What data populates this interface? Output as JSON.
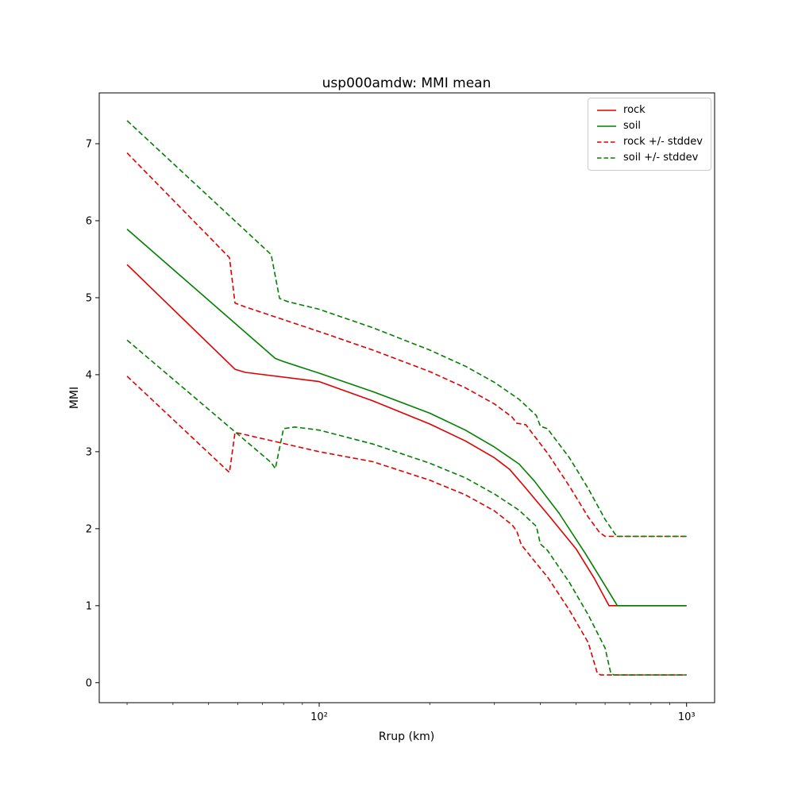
{
  "chart_data": {
    "type": "line",
    "title": "usp000amdw: MMI mean",
    "xlabel": "Rrup (km)",
    "ylabel": "MMI",
    "x_scale": "log",
    "y_scale": "linear",
    "xlim": [
      25.2,
      1192
    ],
    "ylim": [
      -0.26,
      7.66
    ],
    "grid": false,
    "legend_position": "upper right",
    "x_major_ticks": [
      {
        "value": 100,
        "label": "10²"
      },
      {
        "value": 1000,
        "label": "10³"
      }
    ],
    "x_minor_ticks": [
      30,
      40,
      50,
      60,
      70,
      80,
      90,
      200,
      300,
      400,
      500,
      600,
      700,
      800,
      900
    ],
    "y_ticks": [
      0,
      1,
      2,
      3,
      4,
      5,
      6,
      7
    ],
    "series": [
      {
        "id": "rock",
        "label": "rock",
        "color": "#e00000",
        "style": "solid",
        "points": [
          [
            30,
            5.43
          ],
          [
            59,
            4.07
          ],
          [
            63,
            4.03
          ],
          [
            100,
            3.91
          ],
          [
            140,
            3.66
          ],
          [
            200,
            3.36
          ],
          [
            250,
            3.14
          ],
          [
            300,
            2.92
          ],
          [
            330,
            2.77
          ],
          [
            360,
            2.56
          ],
          [
            420,
            2.18
          ],
          [
            500,
            1.74
          ],
          [
            560,
            1.36
          ],
          [
            615,
            1.0
          ],
          [
            1000,
            1.0
          ]
        ]
      },
      {
        "id": "soil",
        "label": "soil",
        "color": "#008000",
        "style": "solid",
        "points": [
          [
            30,
            5.89
          ],
          [
            76,
            4.21
          ],
          [
            80,
            4.17
          ],
          [
            100,
            4.02
          ],
          [
            140,
            3.78
          ],
          [
            200,
            3.5
          ],
          [
            250,
            3.28
          ],
          [
            300,
            3.06
          ],
          [
            350,
            2.84
          ],
          [
            385,
            2.62
          ],
          [
            450,
            2.2
          ],
          [
            530,
            1.68
          ],
          [
            600,
            1.26
          ],
          [
            648,
            1.0
          ],
          [
            1000,
            1.0
          ]
        ]
      },
      {
        "id": "rock-stddev",
        "label": "rock +/- stddev",
        "color": "#e00000",
        "style": "dashed",
        "points_upper": [
          [
            30,
            6.88
          ],
          [
            57,
            5.52
          ],
          [
            59,
            4.93
          ],
          [
            63,
            4.88
          ],
          [
            100,
            4.56
          ],
          [
            140,
            4.32
          ],
          [
            200,
            4.04
          ],
          [
            250,
            3.83
          ],
          [
            300,
            3.62
          ],
          [
            335,
            3.45
          ],
          [
            345,
            3.37
          ],
          [
            365,
            3.35
          ],
          [
            420,
            2.97
          ],
          [
            480,
            2.55
          ],
          [
            540,
            2.15
          ],
          [
            580,
            1.95
          ],
          [
            600,
            1.9
          ],
          [
            1000,
            1.9
          ]
        ],
        "points_lower": [
          [
            30,
            3.98
          ],
          [
            57,
            2.73
          ],
          [
            59,
            3.25
          ],
          [
            63,
            3.22
          ],
          [
            100,
            3.0
          ],
          [
            140,
            2.87
          ],
          [
            200,
            2.63
          ],
          [
            250,
            2.44
          ],
          [
            300,
            2.23
          ],
          [
            335,
            2.05
          ],
          [
            345,
            1.97
          ],
          [
            355,
            1.79
          ],
          [
            420,
            1.36
          ],
          [
            480,
            0.94
          ],
          [
            540,
            0.52
          ],
          [
            572,
            0.12
          ],
          [
            585,
            0.1
          ],
          [
            1000,
            0.1
          ]
        ]
      },
      {
        "id": "soil-stddev",
        "label": "soil +/- stddev",
        "color": "#008000",
        "style": "dashed",
        "points_upper": [
          [
            30,
            7.3
          ],
          [
            74,
            5.56
          ],
          [
            78,
            4.99
          ],
          [
            82,
            4.95
          ],
          [
            100,
            4.85
          ],
          [
            140,
            4.61
          ],
          [
            200,
            4.32
          ],
          [
            250,
            4.11
          ],
          [
            300,
            3.9
          ],
          [
            350,
            3.68
          ],
          [
            390,
            3.47
          ],
          [
            400,
            3.33
          ],
          [
            418,
            3.3
          ],
          [
            480,
            2.92
          ],
          [
            540,
            2.52
          ],
          [
            600,
            2.12
          ],
          [
            645,
            1.9
          ],
          [
            1000,
            1.9
          ]
        ],
        "points_lower": [
          [
            30,
            4.45
          ],
          [
            74,
            2.86
          ],
          [
            76,
            2.78
          ],
          [
            80,
            3.3
          ],
          [
            86,
            3.32
          ],
          [
            100,
            3.28
          ],
          [
            140,
            3.1
          ],
          [
            200,
            2.85
          ],
          [
            250,
            2.66
          ],
          [
            300,
            2.45
          ],
          [
            350,
            2.24
          ],
          [
            390,
            2.03
          ],
          [
            400,
            1.8
          ],
          [
            418,
            1.72
          ],
          [
            480,
            1.3
          ],
          [
            540,
            0.88
          ],
          [
            600,
            0.45
          ],
          [
            622,
            0.12
          ],
          [
            635,
            0.1
          ],
          [
            1000,
            0.1
          ]
        ]
      }
    ]
  }
}
